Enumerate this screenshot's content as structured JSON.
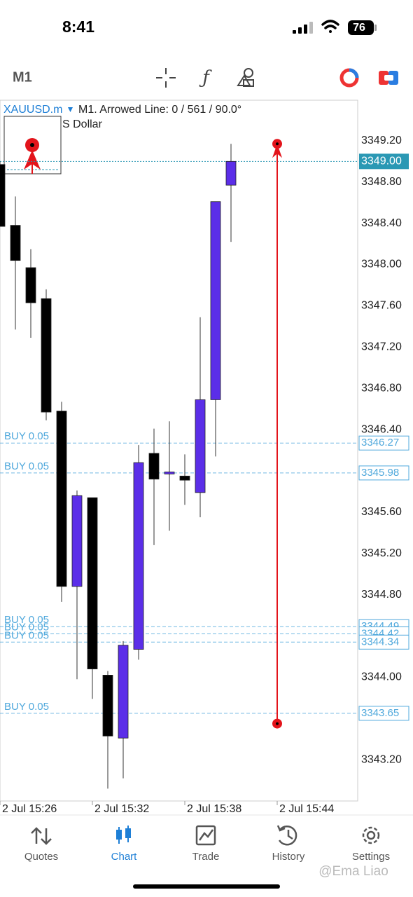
{
  "status_bar": {
    "time": "8:41",
    "battery": "76"
  },
  "toolbar": {
    "timeframe": "M1"
  },
  "chart_data": {
    "type": "candlestick",
    "symbol": "XAUUSD.m",
    "subtitle": "M1. Arrowed Line: 0 / 561 / 90.0°",
    "legend_text": "S Dollar",
    "categories": [
      "2 Jul 15:26",
      null,
      null,
      null,
      null,
      null,
      "2 Jul 15:32",
      null,
      null,
      null,
      null,
      null,
      "2 Jul 15:38",
      null,
      null,
      null,
      null,
      null,
      "2 Jul 15:44"
    ],
    "open": [
      3348.97,
      3348.38,
      3347.97,
      3347.67,
      3346.58,
      3344.88,
      3345.74,
      3344.02,
      3343.41,
      3344.27,
      3346.17,
      3345.97,
      3345.95,
      3345.79,
      3346.69,
      3348.77,
      null,
      null,
      null
    ],
    "high": [
      3349.0,
      3348.66,
      3348.15,
      3347.76,
      3346.67,
      3345.81,
      3345.74,
      3344.06,
      3344.35,
      3346.25,
      3346.41,
      3346.48,
      3346.16,
      3347.49,
      3348.61,
      3349.17,
      null,
      null,
      null
    ],
    "low": [
      3348.37,
      3347.37,
      3347.29,
      3346.49,
      3344.73,
      3343.98,
      3343.79,
      3342.92,
      3343.02,
      3344.17,
      3345.28,
      3345.42,
      3345.67,
      3345.55,
      3346.14,
      3348.22,
      null,
      null,
      null
    ],
    "close": [
      3348.37,
      3348.04,
      3347.63,
      3346.57,
      3344.88,
      3345.76,
      3344.08,
      3343.43,
      3344.31,
      3346.08,
      3345.92,
      3345.99,
      3345.91,
      3346.69,
      3348.61,
      3349.0,
      null,
      null,
      null
    ],
    "up_color": "#5b2ee8",
    "down_color": "#000000",
    "ylim": [
      3342.8,
      3349.6
    ],
    "yticks": [
      {
        "value": 3343.2,
        "label": "3343.20"
      },
      {
        "value": 3344,
        "label": "3344.00"
      },
      {
        "value": 3344.8,
        "label": "3344.80"
      },
      {
        "value": 3345.2,
        "label": "3345.20"
      },
      {
        "value": 3345.6,
        "label": "3345.60"
      },
      {
        "value": 3346.4,
        "label": "3346.40"
      },
      {
        "value": 3346.8,
        "label": "3346.80"
      },
      {
        "value": 3347.2,
        "label": "3347.20"
      },
      {
        "value": 3347.6,
        "label": "3347.60"
      },
      {
        "value": 3348,
        "label": "3348.00"
      },
      {
        "value": 3348.4,
        "label": "3348.40"
      },
      {
        "value": 3348.8,
        "label": "3348.80"
      },
      {
        "value": 3349.2,
        "label": "3349.20"
      }
    ],
    "price_line": {
      "value": 3349,
      "label": "3349.00",
      "color": "#2a98b4"
    },
    "orders": [
      {
        "label": "BUY 0.05",
        "price": 3346.27
      },
      {
        "label": "BUY 0.05",
        "price": 3345.98
      },
      {
        "label": "BUY 0.05",
        "price": 3344.49
      },
      {
        "label": "BUY 0.05",
        "price": 3344.42
      },
      {
        "label": "BUY 0.05",
        "price": 3344.34
      },
      {
        "label": "BUY 0.05",
        "price": 3343.65
      }
    ],
    "order_color": "#4fa8dc",
    "arrowed_line": {
      "category": "2 Jul 15:44",
      "from": 3343.55,
      "to": 3349.17,
      "color": "#e3141b"
    }
  },
  "tabs": [
    {
      "label": "Quotes"
    },
    {
      "label": "Chart",
      "active": true
    },
    {
      "label": "Trade"
    },
    {
      "label": "History"
    },
    {
      "label": "Settings"
    }
  ],
  "watermark": "@Ema Liao"
}
